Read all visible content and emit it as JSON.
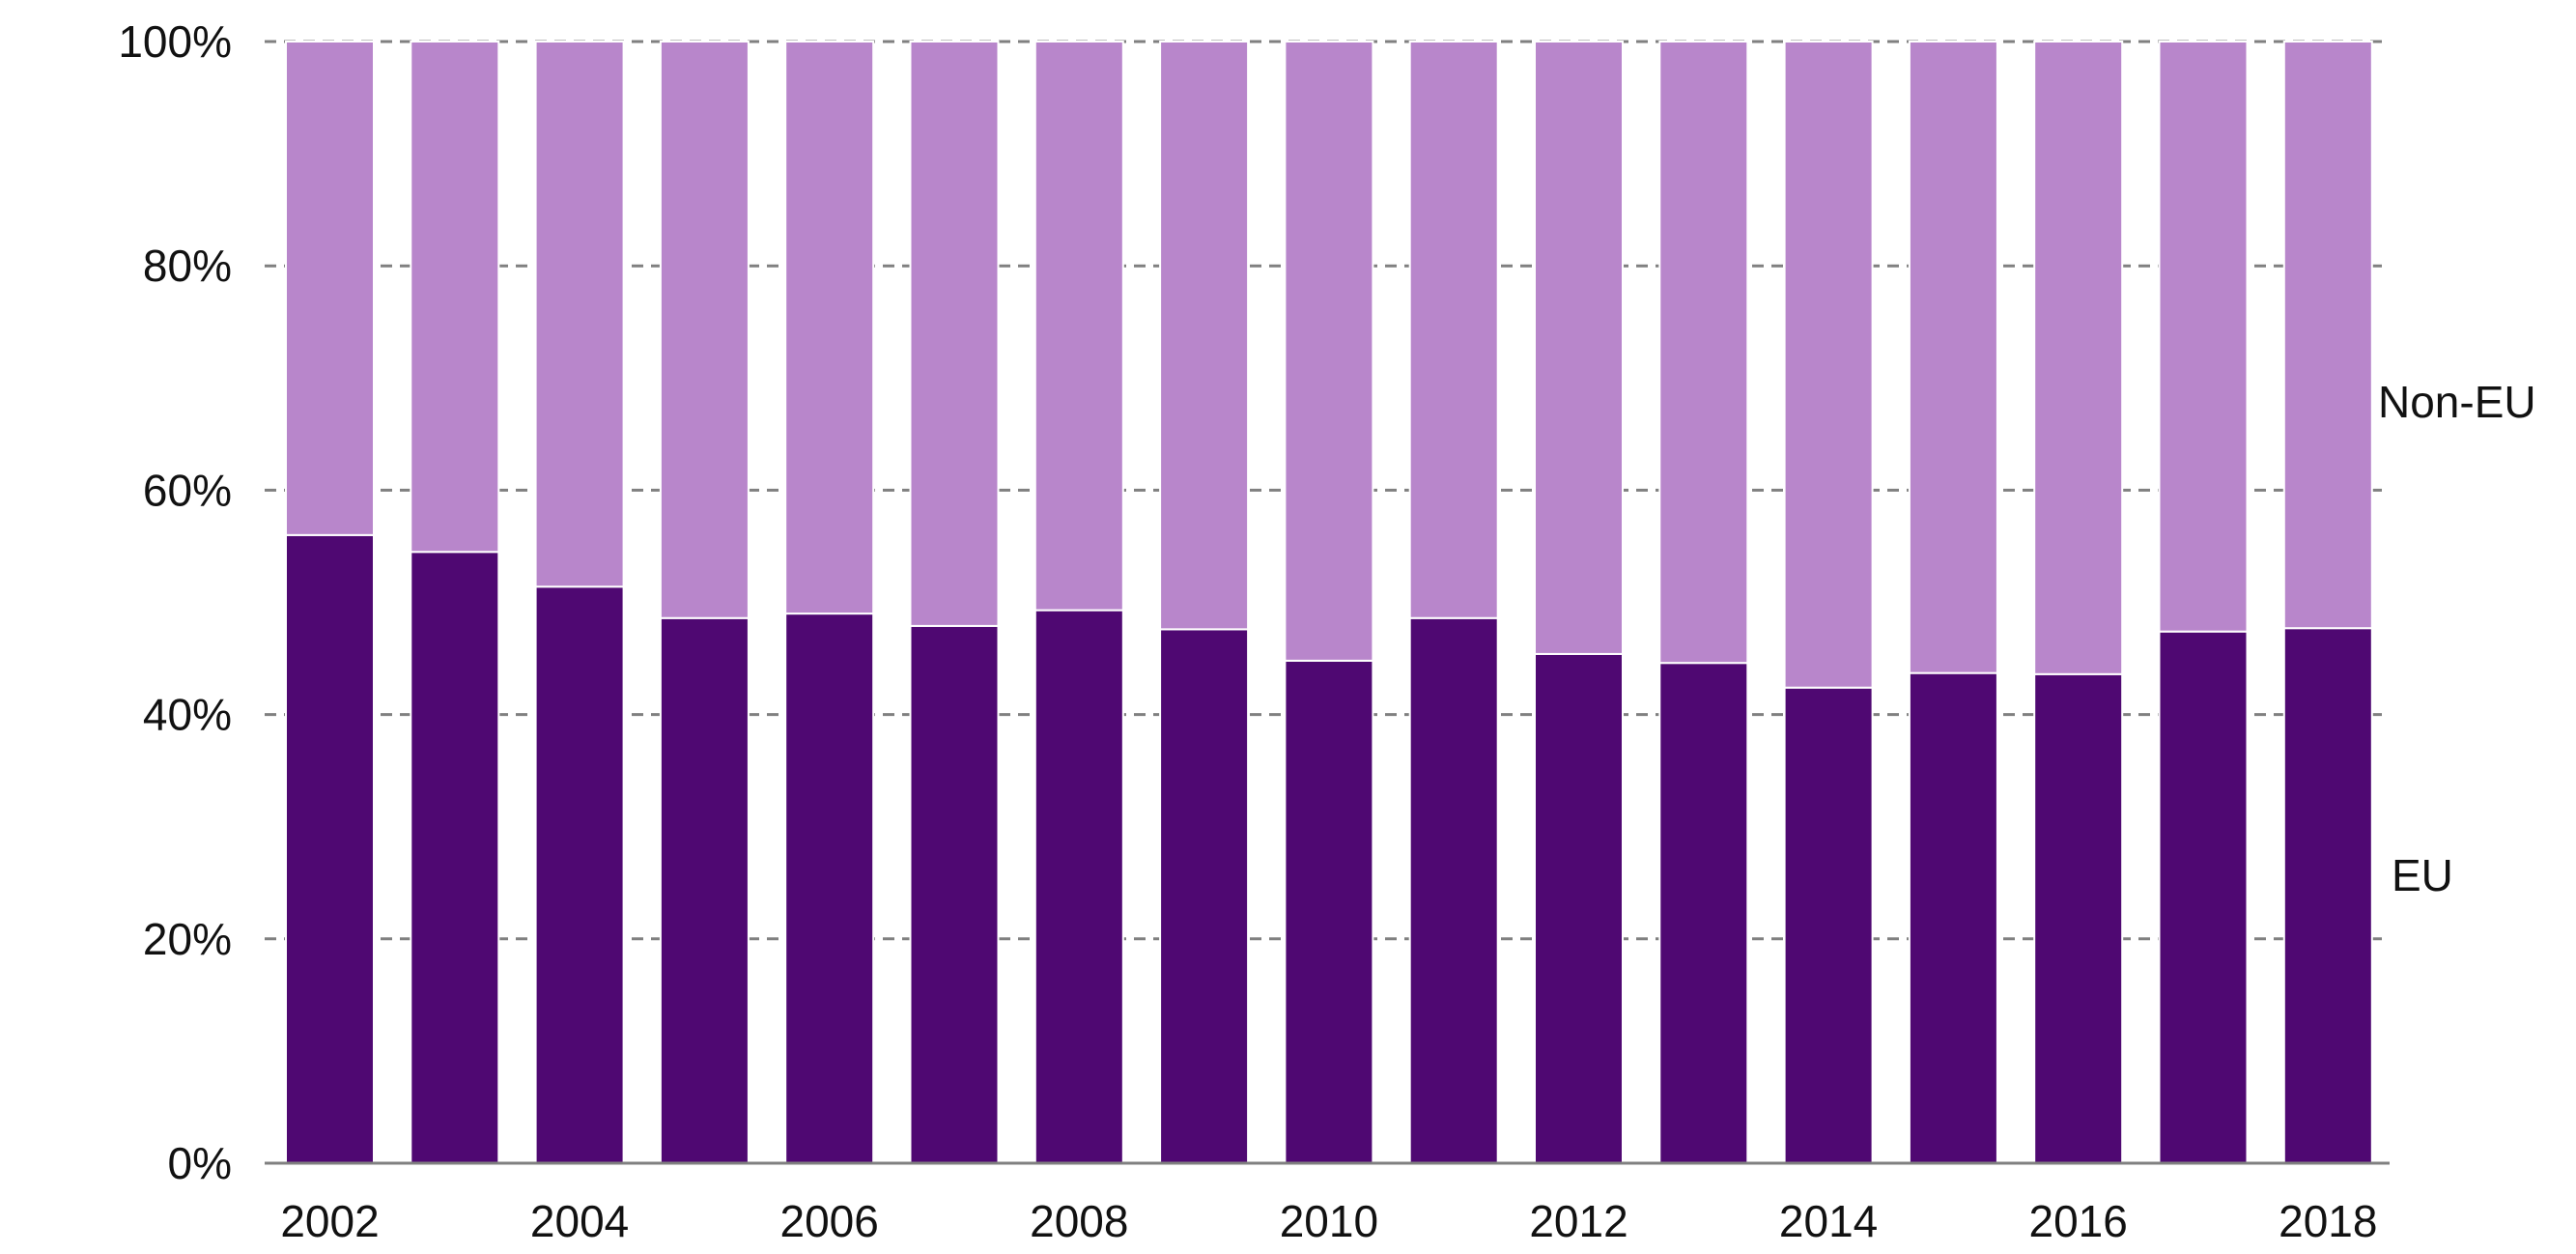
{
  "chart_data": {
    "type": "bar",
    "stacked": true,
    "percent": true,
    "title": "",
    "xlabel": "",
    "ylabel": "",
    "ylim": [
      0,
      100
    ],
    "yticks": [
      "0%",
      "20%",
      "40%",
      "60%",
      "80%",
      "100%"
    ],
    "ytick_values": [
      0,
      20,
      40,
      60,
      80,
      100
    ],
    "categories": [
      "2002",
      "2003",
      "2004",
      "2005",
      "2006",
      "2007",
      "2008",
      "2009",
      "2010",
      "2011",
      "2012",
      "2013",
      "2014",
      "2015",
      "2016",
      "2017",
      "2018"
    ],
    "xtick_labels_shown": [
      "2002",
      "2004",
      "2006",
      "2008",
      "2010",
      "2012",
      "2014",
      "2016",
      "2018"
    ],
    "grid": "horizontal dashed",
    "series": [
      {
        "name": "EU",
        "color": "#4f0872",
        "values": [
          56.0,
          54.5,
          51.4,
          48.6,
          49.0,
          47.9,
          49.3,
          47.6,
          44.8,
          48.6,
          45.4,
          44.6,
          42.4,
          43.7,
          43.6,
          47.4,
          47.7
        ]
      },
      {
        "name": "Non-EU",
        "color": "#b886cb",
        "values": [
          44.0,
          45.5,
          48.6,
          51.4,
          51.0,
          52.1,
          50.7,
          52.4,
          55.2,
          51.4,
          54.6,
          55.4,
          57.6,
          56.3,
          56.4,
          52.6,
          52.3
        ]
      }
    ],
    "legend_placement": "right, inline labels"
  }
}
